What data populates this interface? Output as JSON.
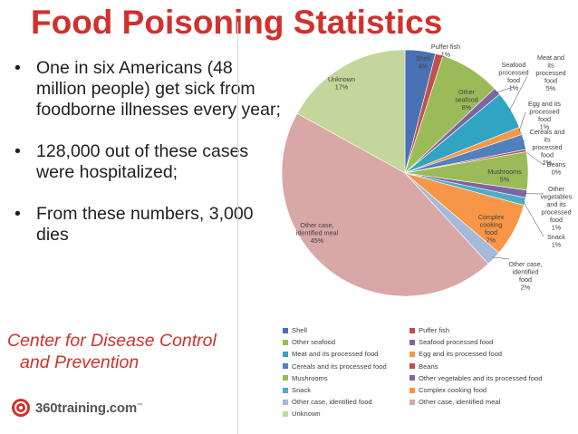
{
  "slide": {
    "title": "Food Poisoning Statistics",
    "bullets": [
      "One in six Americans (48 million people) get sick from foodborne illnesses every year;",
      "128,000 out of these cases were hospitalized;",
      "From these numbers, 3,000 dies"
    ],
    "bullet_symbol": "•",
    "source_line1": "Center for Disease Control",
    "source_line2": "and Prevention",
    "logo_text": "360training.com",
    "logo_tm": "™",
    "accent_color": "#d0312d"
  },
  "chart_data": {
    "type": "pie",
    "slices": [
      {
        "name": "Shell",
        "value": 4,
        "label": "Shell",
        "pct": "4%",
        "color": "#4a71b5"
      },
      {
        "name": "Puffer fish",
        "value": 1,
        "label": "Puffer fish",
        "pct": "1%",
        "color": "#c0504d"
      },
      {
        "name": "Other seafood",
        "value": 8,
        "label": "Other seafood",
        "pct": "8%",
        "color": "#9bbb59"
      },
      {
        "name": "Seafood processed food",
        "value": 1,
        "label": "Seafood processed food",
        "pct": "1%",
        "color": "#7f64a2"
      },
      {
        "name": "Meat and its processed food",
        "value": 5,
        "label": "Meat and its processed food",
        "pct": "5%",
        "color": "#31a4c2"
      },
      {
        "name": "Egg and its processed food",
        "value": 1,
        "label": "Egg and its processed food",
        "pct": "1%",
        "color": "#f79646"
      },
      {
        "name": "Cereals and its processed food",
        "value": 2,
        "label": "Cereals and its processed food",
        "pct": "2%",
        "color": "#4f81bd"
      },
      {
        "name": "Beans",
        "value": 0.3,
        "label": "Beans",
        "pct": "0%",
        "color": "#c0504d"
      },
      {
        "name": "Mushrooms",
        "value": 5,
        "label": "Mushrooms",
        "pct": "5%",
        "color": "#9bbb59"
      },
      {
        "name": "Other vegetables and its processed food",
        "value": 1,
        "label": "Other vegetables and its processed food",
        "pct": "1%",
        "color": "#8064a2"
      },
      {
        "name": "Snack",
        "value": 1,
        "label": "Snack",
        "pct": "1%",
        "color": "#4bacc6"
      },
      {
        "name": "Complex cooking food",
        "value": 7,
        "label": "Complex cooking food",
        "pct": "7%",
        "color": "#f79646"
      },
      {
        "name": "Other case, identified food",
        "value": 2,
        "label": "Other case, identified food",
        "pct": "2%",
        "color": "#a5b9da"
      },
      {
        "name": "Other case, identified meal",
        "value": 45,
        "label": "Other case, identified meal",
        "pct": "45%",
        "color": "#d9a7a6"
      },
      {
        "name": "Unknown",
        "value": 17,
        "label": "Unknown",
        "pct": "17%",
        "color": "#c3d69b"
      }
    ],
    "legend": [
      {
        "name": "Shell",
        "color": "#4a71b5"
      },
      {
        "name": "Puffer fish",
        "color": "#c0504d"
      },
      {
        "name": "Other seafood",
        "color": "#9bbb59"
      },
      {
        "name": "Seafood processed food",
        "color": "#7f64a2"
      },
      {
        "name": "Meat and its processed food",
        "color": "#31a4c2"
      },
      {
        "name": "Egg and its processed food",
        "color": "#f79646"
      },
      {
        "name": "Cereals and its processed food",
        "color": "#4f81bd"
      },
      {
        "name": "Beans",
        "color": "#c0504d"
      },
      {
        "name": "Mushrooms",
        "color": "#9bbb59"
      },
      {
        "name": "Other vegetables and its processed food",
        "color": "#8064a2"
      },
      {
        "name": "Snack",
        "color": "#4bacc6"
      },
      {
        "name": "Complex cooking food",
        "color": "#f79646"
      },
      {
        "name": "Other case, identified food",
        "color": "#a5b9da"
      },
      {
        "name": "Other case, identified meal",
        "color": "#d9a7a6"
      },
      {
        "name": "Unknown",
        "color": "#c3d69b"
      }
    ],
    "legend_placement": "bottom"
  }
}
